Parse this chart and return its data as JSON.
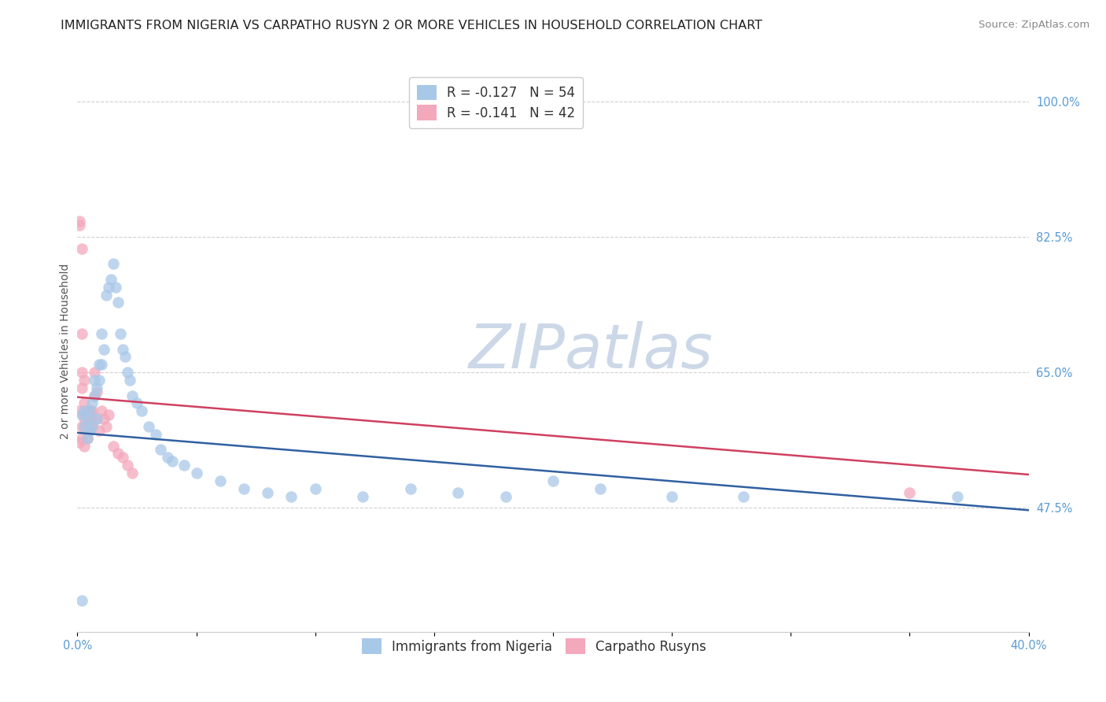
{
  "title": "IMMIGRANTS FROM NIGERIA VS CARPATHO RUSYN 2 OR MORE VEHICLES IN HOUSEHOLD CORRELATION CHART",
  "source": "Source: ZipAtlas.com",
  "ylabel": "2 or more Vehicles in Household",
  "xlim": [
    0.0,
    0.4
  ],
  "ylim": [
    0.315,
    1.04
  ],
  "xticks": [
    0.0,
    0.05,
    0.1,
    0.15,
    0.2,
    0.25,
    0.3,
    0.35,
    0.4
  ],
  "xticklabels": [
    "0.0%",
    "",
    "",
    "",
    "",
    "",
    "",
    "",
    "40.0%"
  ],
  "yticks": [
    0.475,
    0.65,
    0.825,
    1.0
  ],
  "yticklabels": [
    "47.5%",
    "65.0%",
    "82.5%",
    "100.0%"
  ],
  "legend_entries": [
    {
      "label": "R = -0.127   N = 54",
      "color": "#a8c8e8"
    },
    {
      "label": "R = -0.141   N = 42",
      "color": "#f4a8bc"
    }
  ],
  "legend_labels_bottom": [
    "Immigrants from Nigeria",
    "Carpatho Rusyns"
  ],
  "blue_scatter_x": [
    0.002,
    0.003,
    0.003,
    0.004,
    0.004,
    0.005,
    0.005,
    0.006,
    0.006,
    0.007,
    0.007,
    0.008,
    0.008,
    0.009,
    0.009,
    0.01,
    0.01,
    0.011,
    0.012,
    0.013,
    0.014,
    0.015,
    0.016,
    0.017,
    0.018,
    0.019,
    0.02,
    0.021,
    0.022,
    0.023,
    0.025,
    0.027,
    0.03,
    0.033,
    0.035,
    0.038,
    0.04,
    0.045,
    0.05,
    0.06,
    0.07,
    0.08,
    0.09,
    0.1,
    0.12,
    0.14,
    0.16,
    0.18,
    0.2,
    0.22,
    0.25,
    0.28,
    0.37,
    0.002
  ],
  "blue_scatter_y": [
    0.595,
    0.6,
    0.58,
    0.59,
    0.565,
    0.575,
    0.6,
    0.61,
    0.58,
    0.62,
    0.64,
    0.63,
    0.59,
    0.64,
    0.66,
    0.7,
    0.66,
    0.68,
    0.75,
    0.76,
    0.77,
    0.79,
    0.76,
    0.74,
    0.7,
    0.68,
    0.67,
    0.65,
    0.64,
    0.62,
    0.61,
    0.6,
    0.58,
    0.57,
    0.55,
    0.54,
    0.535,
    0.53,
    0.52,
    0.51,
    0.5,
    0.495,
    0.49,
    0.5,
    0.49,
    0.5,
    0.495,
    0.49,
    0.51,
    0.5,
    0.49,
    0.49,
    0.49,
    0.355
  ],
  "pink_scatter_x": [
    0.001,
    0.001,
    0.001,
    0.002,
    0.002,
    0.002,
    0.002,
    0.003,
    0.003,
    0.003,
    0.003,
    0.004,
    0.004,
    0.004,
    0.005,
    0.005,
    0.005,
    0.006,
    0.006,
    0.007,
    0.007,
    0.008,
    0.008,
    0.009,
    0.01,
    0.011,
    0.012,
    0.013,
    0.015,
    0.017,
    0.019,
    0.021,
    0.023,
    0.001,
    0.002,
    0.003,
    0.003,
    0.004,
    0.005,
    0.006,
    0.002,
    0.35
  ],
  "pink_scatter_y": [
    0.84,
    0.845,
    0.6,
    0.63,
    0.65,
    0.7,
    0.58,
    0.595,
    0.61,
    0.64,
    0.59,
    0.6,
    0.58,
    0.59,
    0.6,
    0.58,
    0.59,
    0.6,
    0.58,
    0.65,
    0.62,
    0.625,
    0.59,
    0.575,
    0.6,
    0.59,
    0.58,
    0.595,
    0.555,
    0.545,
    0.54,
    0.53,
    0.52,
    0.56,
    0.565,
    0.555,
    0.58,
    0.565,
    0.6,
    0.59,
    0.81,
    0.495
  ],
  "blue_line_x": [
    0.0,
    0.4
  ],
  "blue_line_y": [
    0.572,
    0.472
  ],
  "pink_line_x": [
    0.0,
    0.4
  ],
  "pink_line_y": [
    0.618,
    0.518
  ],
  "scatter_size": 110,
  "blue_color": "#a8c8e8",
  "pink_color": "#f4a8bc",
  "blue_line_color": "#3060a0",
  "pink_line_color": "#d04060",
  "watermark_text": "ZIPatlas",
  "watermark_color": "#ccd8e8",
  "title_fontsize": 11.5,
  "axis_label_fontsize": 10,
  "tick_fontsize": 10.5,
  "legend_fontsize": 12,
  "source_fontsize": 9.5,
  "right_ytick_color": "#5b9bd5",
  "xtick_color": "#5b9bd5",
  "background_color": "#ffffff",
  "grid_color": "#d0d0d0"
}
